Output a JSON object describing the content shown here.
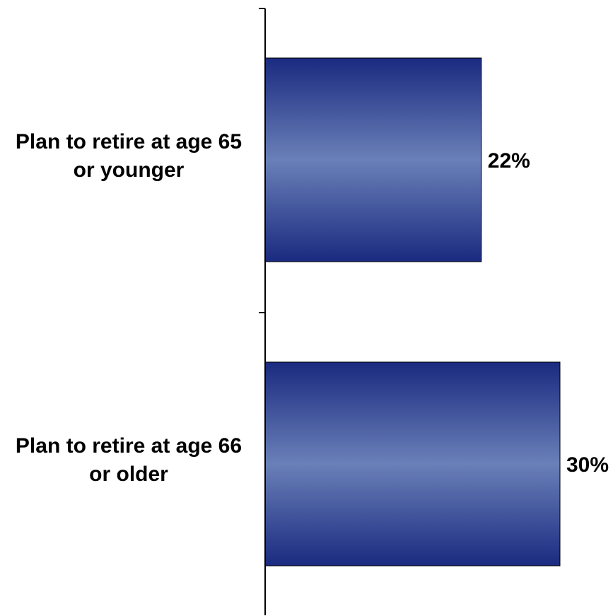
{
  "chart_data": {
    "type": "bar",
    "orientation": "horizontal",
    "categories": [
      [
        "Plan to retire at age 65",
        "or younger"
      ],
      [
        "Plan to retire at age 66",
        "or older"
      ]
    ],
    "values": [
      22,
      30
    ],
    "value_labels": [
      "22%",
      "30%"
    ],
    "title": "",
    "xlabel": "",
    "ylabel": "",
    "xlim": [
      0,
      30
    ],
    "grid": false,
    "legend": "none",
    "bar_color_dark": "#1a2a80",
    "bar_color_light": "#6a80b8",
    "axis_color": "#000000"
  }
}
